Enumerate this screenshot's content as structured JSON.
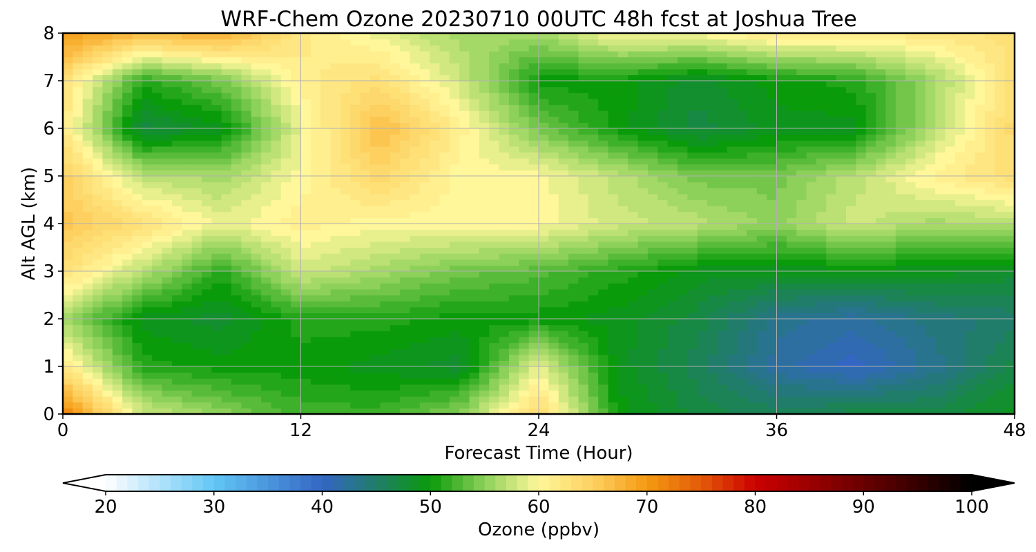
{
  "chart_data": {
    "type": "heatmap",
    "title": "WRF-Chem Ozone  20230710 00UTC 48h fcst at Joshua Tree",
    "xlabel": "Forecast Time (Hour)",
    "ylabel": "Alt AGL (km)",
    "xlim": [
      0,
      48
    ],
    "ylim": [
      0,
      8
    ],
    "xticks": [
      "0",
      "12",
      "24",
      "36",
      "48"
    ],
    "yticks": [
      "0",
      "1",
      "2",
      "3",
      "4",
      "5",
      "6",
      "7",
      "8"
    ],
    "grid": true,
    "colorbar": {
      "label": "Ozone  (ppbv)",
      "range": [
        20,
        100
      ],
      "ticks": [
        "20",
        "30",
        "40",
        "50",
        "60",
        "70",
        "80",
        "90",
        "100"
      ],
      "extend": "both",
      "stops": [
        {
          "value": 20,
          "color": "#ffffff"
        },
        {
          "value": 30,
          "color": "#62c6f5"
        },
        {
          "value": 40,
          "color": "#3466c4"
        },
        {
          "value": 45,
          "color": "#207d6a"
        },
        {
          "value": 50,
          "color": "#0a9b0a"
        },
        {
          "value": 55,
          "color": "#8dd15a"
        },
        {
          "value": 60,
          "color": "#fff79a"
        },
        {
          "value": 65,
          "color": "#fdd060"
        },
        {
          "value": 70,
          "color": "#f59a12"
        },
        {
          "value": 75,
          "color": "#e35a08"
        },
        {
          "value": 80,
          "color": "#cc0000"
        },
        {
          "value": 90,
          "color": "#6a0000"
        },
        {
          "value": 100,
          "color": "#000000"
        }
      ]
    },
    "x": [
      0,
      4,
      8,
      12,
      16,
      20,
      24,
      28,
      32,
      36,
      40,
      44,
      48
    ],
    "y": [
      0,
      1,
      2,
      3,
      4,
      5,
      6,
      7,
      8
    ],
    "z": [
      [
        72,
        58,
        55,
        52,
        52,
        55,
        64,
        50,
        47,
        46,
        47,
        47,
        49
      ],
      [
        62,
        51,
        50,
        50,
        49,
        48,
        59,
        49,
        46,
        42,
        40,
        43,
        47
      ],
      [
        56,
        49,
        48,
        51,
        51,
        50,
        50,
        49,
        47,
        43,
        42,
        44,
        45
      ],
      [
        63,
        57,
        51,
        58,
        56,
        54,
        53,
        51,
        49,
        49,
        49,
        49,
        48
      ],
      [
        66,
        63,
        59,
        61,
        60,
        60,
        60,
        58,
        57,
        55,
        58,
        56,
        57
      ],
      [
        65,
        57,
        56,
        60,
        64,
        60,
        60,
        57,
        54,
        54,
        57,
        61,
        63
      ],
      [
        62,
        47,
        49,
        59,
        67,
        61,
        54,
        50,
        47,
        49,
        49,
        57,
        64
      ],
      [
        63,
        51,
        54,
        61,
        63,
        58,
        50,
        50,
        48,
        50,
        51,
        56,
        63
      ],
      [
        70,
        67,
        68,
        62,
        59,
        56,
        56,
        60,
        60,
        62,
        62,
        62,
        63
      ]
    ]
  }
}
